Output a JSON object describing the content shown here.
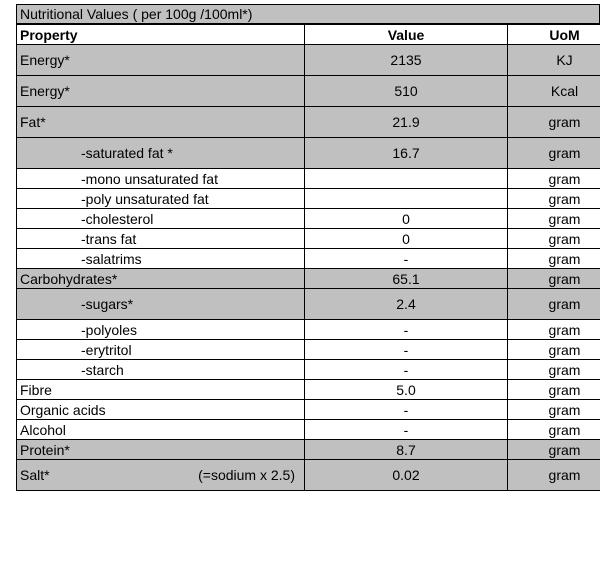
{
  "title": "Nutritional Values ( per 100g /100ml*)",
  "headers": {
    "property": "Property",
    "value": "Value",
    "uom": "UoM"
  },
  "rows": [
    {
      "property": "Energy*",
      "value": "2135",
      "uom": "KJ"
    },
    {
      "property": "Energy*",
      "value": "510",
      "uom": "Kcal"
    },
    {
      "property": "Fat*",
      "value": "21.9",
      "uom": "gram"
    },
    {
      "property": "-saturated fat *",
      "value": "16.7",
      "uom": "gram"
    },
    {
      "property": "-mono unsaturated fat",
      "value": "",
      "uom": "gram"
    },
    {
      "property": "-poly unsaturated fat",
      "value": "",
      "uom": "gram"
    },
    {
      "property": "-cholesterol",
      "value": "0",
      "uom": "gram"
    },
    {
      "property": "-trans fat",
      "value": "0",
      "uom": "gram"
    },
    {
      "property": "-salatrims",
      "value": "-",
      "uom": "gram"
    },
    {
      "property": "Carbohydrates*",
      "value": "65.1",
      "uom": "gram"
    },
    {
      "property": "-sugars*",
      "value": "2.4",
      "uom": "gram"
    },
    {
      "property": "-polyoles",
      "value": "-",
      "uom": "gram"
    },
    {
      "property": "-erytritol",
      "value": "-",
      "uom": "gram"
    },
    {
      "property": "-starch",
      "value": "-",
      "uom": "gram"
    },
    {
      "property": "Fibre",
      "value": "5.0",
      "uom": "gram"
    },
    {
      "property": "Organic acids",
      "value": "-",
      "uom": "gram"
    },
    {
      "property": "Alcohol",
      "value": "-",
      "uom": "gram"
    },
    {
      "property": "Protein*",
      "value": "8.7",
      "uom": "gram"
    },
    {
      "property": "Salt*",
      "note": "(=sodium x 2.5)",
      "value": "0.02",
      "uom": "gram"
    }
  ],
  "colors": {
    "shaded": "#c0c0c0",
    "plain": "#ffffff"
  }
}
